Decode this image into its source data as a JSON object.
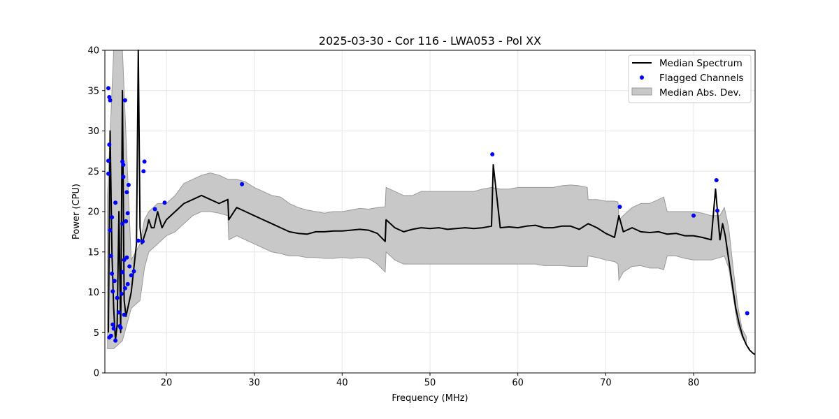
{
  "chart_data": {
    "type": "line",
    "title": "2025-03-30 - Cor 116 - LWA053 - Pol XX",
    "xlabel": "Frequency (MHz)",
    "ylabel": "Power (CPU)",
    "xlim": [
      13,
      87
    ],
    "ylim": [
      0,
      40
    ],
    "xticks": [
      20,
      30,
      40,
      50,
      60,
      70,
      80
    ],
    "yticks": [
      0,
      5,
      10,
      15,
      20,
      25,
      30,
      35,
      40
    ],
    "grid": true,
    "legend_position": "top-right",
    "colors": {
      "median": "#000000",
      "flagged": "#0000ff",
      "mad_fill": "#c8c8c8",
      "mad_edge": "#9a9a9a"
    },
    "series": [
      {
        "name": "Median Spectrum",
        "kind": "line",
        "x": [
          13.4,
          13.6,
          13.8,
          14.0,
          14.2,
          14.4,
          14.6,
          14.8,
          15.0,
          15.2,
          15.4,
          15.6,
          15.8,
          16.0,
          16.2,
          16.4,
          16.6,
          16.8,
          17.0,
          17.2,
          17.5,
          17.8,
          18.0,
          18.3,
          18.6,
          19.0,
          19.5,
          20.0,
          21.0,
          22.0,
          23.0,
          24.0,
          25.0,
          26.0,
          27.0,
          27.1,
          28.0,
          29.0,
          30.0,
          31.0,
          32.0,
          33.0,
          34.0,
          35.0,
          36.0,
          37.0,
          38.0,
          39.0,
          40.0,
          41.0,
          42.0,
          43.0,
          44.0,
          44.9,
          45.0,
          46.0,
          47.0,
          48.0,
          49.0,
          50.0,
          51.0,
          52.0,
          53.0,
          54.0,
          55.0,
          56.0,
          57.0,
          57.2,
          58.0,
          59.0,
          60.0,
          61.0,
          62.0,
          63.0,
          64.0,
          65.0,
          66.0,
          67.0,
          68.0,
          69.0,
          70.0,
          71.0,
          71.5,
          72.0,
          73.0,
          74.0,
          75.0,
          76.0,
          77.0,
          78.0,
          79.0,
          80.0,
          81.0,
          82.0,
          82.5,
          83.0,
          83.3,
          83.6,
          84.0,
          84.4,
          84.8,
          85.2,
          85.6,
          86.0,
          86.4,
          86.8,
          87.0
        ],
        "values": [
          5,
          30,
          15,
          8,
          4,
          6,
          20,
          5,
          35,
          9,
          7,
          8,
          9,
          10,
          12,
          14,
          16,
          40,
          18,
          16,
          17,
          18,
          19,
          18,
          18,
          20,
          18,
          19,
          20,
          21,
          21.5,
          22,
          21.5,
          21,
          21.5,
          19,
          20.5,
          20,
          19.5,
          19,
          18.5,
          18,
          17.5,
          17.3,
          17.2,
          17.5,
          17.5,
          17.6,
          17.6,
          17.7,
          17.8,
          17.7,
          17.3,
          16.3,
          19,
          18,
          17.5,
          17.8,
          18,
          17.9,
          18,
          17.8,
          17.9,
          18,
          17.9,
          18,
          18.2,
          25.8,
          18,
          18.1,
          18,
          18.2,
          18.3,
          18,
          18,
          18.2,
          18.2,
          17.8,
          18.5,
          18,
          17.3,
          16.8,
          19.5,
          17.5,
          18,
          17.5,
          17.4,
          17.5,
          17.2,
          17.3,
          17,
          17,
          16.8,
          16.5,
          22.8,
          16.5,
          18.5,
          17,
          14,
          11,
          8,
          6,
          4.5,
          3.5,
          2.8,
          2.4,
          2.3
        ]
      },
      {
        "name": "Flagged Channels",
        "kind": "scatter",
        "points": [
          [
            13.4,
            35.3
          ],
          [
            13.5,
            34.2
          ],
          [
            13.6,
            33.8
          ],
          [
            13.5,
            28.3
          ],
          [
            13.4,
            26.3
          ],
          [
            13.4,
            24.7
          ],
          [
            13.6,
            17.7
          ],
          [
            13.8,
            19.3
          ],
          [
            13.7,
            14.5
          ],
          [
            13.8,
            12.3
          ],
          [
            13.9,
            10.1
          ],
          [
            14.1,
            11.4
          ],
          [
            13.9,
            6.0
          ],
          [
            14.0,
            5.5
          ],
          [
            13.7,
            4.6
          ],
          [
            13.5,
            4.4
          ],
          [
            14.2,
            4.0
          ],
          [
            14.2,
            21.1
          ],
          [
            14.4,
            9.3
          ],
          [
            14.6,
            7.5
          ],
          [
            14.8,
            5.6
          ],
          [
            14.7,
            5.8
          ],
          [
            14.9,
            9.8
          ],
          [
            15.0,
            12.5
          ],
          [
            15.0,
            18.5
          ],
          [
            15.1,
            24.3
          ],
          [
            15.0,
            26.2
          ],
          [
            15.1,
            25.8
          ],
          [
            15.3,
            33.8
          ],
          [
            15.2,
            14.0
          ],
          [
            15.3,
            10.5
          ],
          [
            15.2,
            7.2
          ],
          [
            15.4,
            18.8
          ],
          [
            15.5,
            22.4
          ],
          [
            15.6,
            19.8
          ],
          [
            15.7,
            23.3
          ],
          [
            15.5,
            14.3
          ],
          [
            15.6,
            11.0
          ],
          [
            15.8,
            13.2
          ],
          [
            16.0,
            12.1
          ],
          [
            16.3,
            12.6
          ],
          [
            16.8,
            16.4
          ],
          [
            17.3,
            16.3
          ],
          [
            17.5,
            26.2
          ],
          [
            17.4,
            25.0
          ],
          [
            18.7,
            20.3
          ],
          [
            19.8,
            21.1
          ],
          [
            28.6,
            23.4
          ],
          [
            57.1,
            27.1
          ],
          [
            71.6,
            20.6
          ],
          [
            80.0,
            19.5
          ],
          [
            82.6,
            23.9
          ],
          [
            82.7,
            20.1
          ],
          [
            86.1,
            7.4
          ]
        ]
      },
      {
        "name": "Median Abs. Dev.",
        "kind": "band",
        "x": [
          13.3,
          14.0,
          15.0,
          16.0,
          17.0,
          17.5,
          18.0,
          19.0,
          20.0,
          21.0,
          22.0,
          23.0,
          24.0,
          25.0,
          26.0,
          27.0,
          27.1,
          28.0,
          29.0,
          30.0,
          31.0,
          32.0,
          33.0,
          34.0,
          35.0,
          36.0,
          37.0,
          38.0,
          39.0,
          40.0,
          41.0,
          42.0,
          43.0,
          44.0,
          44.9,
          45.0,
          46.0,
          47.0,
          48.0,
          49.0,
          50.0,
          51.0,
          52.0,
          53.0,
          54.0,
          55.0,
          56.0,
          57.0,
          58.0,
          59.0,
          60.0,
          61.0,
          62.0,
          63.0,
          64.0,
          65.0,
          66.0,
          67.0,
          67.9,
          68.0,
          69.0,
          70.0,
          71.0,
          71.4,
          71.5,
          72.0,
          73.0,
          74.0,
          75.0,
          76.0,
          76.6,
          77.0,
          78.0,
          79.0,
          80.0,
          81.0,
          82.0,
          83.0,
          83.5,
          84.0,
          84.5,
          85.0,
          85.5,
          86.0
        ],
        "upper": [
          22,
          40,
          40,
          14,
          16,
          19,
          20,
          21,
          21,
          22,
          23.5,
          24,
          24.5,
          24.8,
          24.5,
          24,
          24,
          24,
          23.7,
          23,
          22.5,
          22,
          21.8,
          21,
          20.5,
          20.2,
          20,
          19.8,
          20,
          20,
          20.2,
          20.4,
          20.3,
          20.5,
          20.6,
          23,
          22.5,
          22,
          22,
          22.5,
          22.5,
          22.5,
          22.5,
          22.5,
          22.5,
          22.5,
          22.8,
          23,
          22.8,
          22.8,
          23,
          23,
          23,
          23,
          23,
          23.2,
          23.3,
          23.2,
          23,
          21.5,
          21.5,
          21.3,
          21.3,
          21.2,
          19,
          19.5,
          20.5,
          21,
          21,
          21.5,
          21.8,
          20,
          20,
          20,
          20,
          19.8,
          19.5,
          19.5,
          20.5,
          18,
          13,
          8.5,
          5.5,
          4.5
        ],
        "lower": [
          3,
          3,
          4,
          8,
          9,
          13,
          15,
          16,
          17,
          17.5,
          18.5,
          19.5,
          20,
          20,
          19.8,
          19.5,
          16.5,
          17,
          16.5,
          16,
          15.5,
          15,
          14.8,
          14.5,
          14.5,
          14.3,
          14.3,
          14.2,
          14.2,
          14.3,
          14.2,
          14.3,
          14.2,
          13.5,
          12.5,
          15,
          14,
          13.5,
          13.5,
          13.5,
          13.5,
          13.5,
          13.5,
          13.5,
          13.5,
          13.5,
          13.5,
          13.5,
          13.5,
          13.5,
          13.5,
          13.5,
          13.5,
          13.3,
          13.3,
          13.3,
          13.2,
          13.2,
          13.2,
          14.5,
          14.3,
          14.0,
          13.8,
          13.5,
          11.5,
          12.5,
          13.2,
          13.3,
          13.0,
          13.0,
          12.8,
          14.5,
          14.5,
          14.2,
          14.0,
          14.0,
          14.0,
          14.3,
          14.5,
          13,
          9.5,
          6,
          4.5,
          3.5
        ]
      }
    ]
  }
}
